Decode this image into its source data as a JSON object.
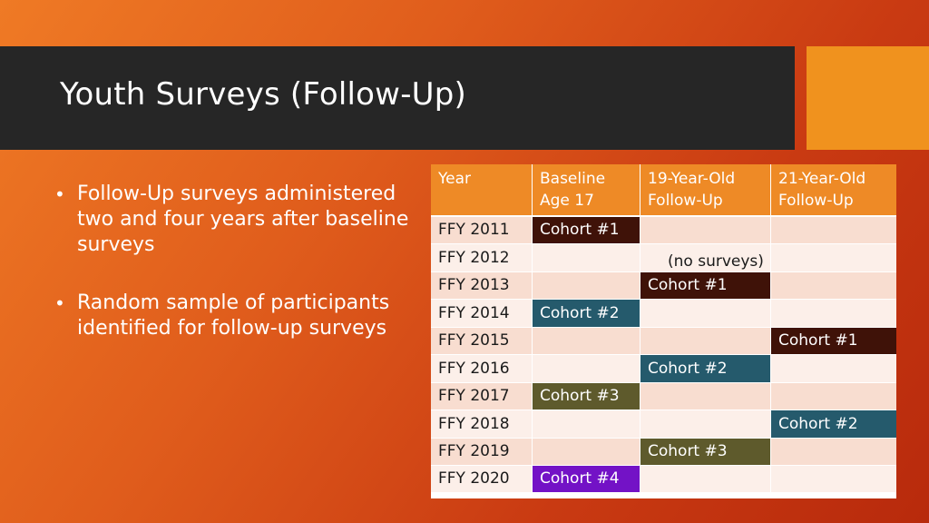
{
  "slide": {
    "title": "Youth Surveys (Follow-Up)"
  },
  "bullets": [
    "Follow-Up surveys administered two and four years after baseline surveys",
    "Random sample of participants identified for follow-up surveys"
  ],
  "table": {
    "headers": [
      "Year",
      "Baseline\nAge 17",
      "19-Year-Old\nFollow-Up",
      "21-Year-Old\nFollow-Up"
    ],
    "rows": [
      {
        "year": "FFY 2011",
        "baseline": "Cohort #1",
        "fu19": "",
        "fu21": ""
      },
      {
        "year": "FFY 2012",
        "baseline": "",
        "fu19": "",
        "fu21": ""
      },
      {
        "year": "FFY 2013",
        "baseline": "",
        "fu19": "Cohort #1",
        "fu21": ""
      },
      {
        "year": "FFY 2014",
        "baseline": "Cohort #2",
        "fu19": "",
        "fu21": ""
      },
      {
        "year": "FFY 2015",
        "baseline": "",
        "fu19": "",
        "fu21": "Cohort #1"
      },
      {
        "year": "FFY 2016",
        "baseline": "",
        "fu19": "Cohort #2",
        "fu21": ""
      },
      {
        "year": "FFY 2017",
        "baseline": "Cohort #3",
        "fu19": "",
        "fu21": ""
      },
      {
        "year": "FFY 2018",
        "baseline": "",
        "fu19": "",
        "fu21": "Cohort #2"
      },
      {
        "year": "FFY 2019",
        "baseline": "",
        "fu19": "Cohort #3",
        "fu21": ""
      },
      {
        "year": "FFY 2020",
        "baseline": "Cohort #4",
        "fu19": "",
        "fu21": ""
      }
    ],
    "no_surveys_note": "(no surveys)"
  },
  "colors": {
    "title_bar": "#262626",
    "accent": "#f0921e",
    "header": "#ee8a26",
    "cohort_1": "#3f1208",
    "cohort_2": "#255a6c",
    "cohort_3": "#5e5a2c",
    "cohort_4": "#7312c6"
  }
}
